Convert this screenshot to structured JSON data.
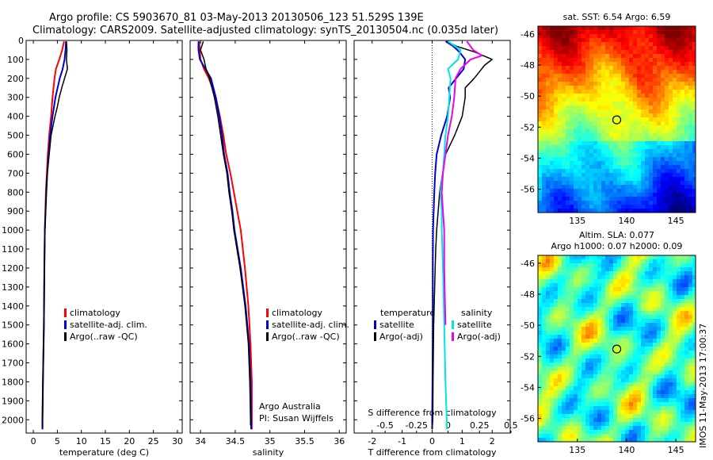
{
  "header": {
    "line1": "Argo profile: CS 5903670_81 03-May-2013 20130506_123 51.529S 139E",
    "line2": "Climatology: CARS2009. Satellite-adjusted climatology: synTS_20130504.nc (0.035d later)"
  },
  "side_label": "IMOS 11-May-2013 17:00:37",
  "colors": {
    "climatology": "#ff0000",
    "satellite": "#0000cc",
    "argo": "#000000",
    "satellite_salinity": "#00e5e5",
    "argo_salinity": "#ee00ee"
  },
  "chart_data": [
    {
      "id": "temperature",
      "type": "line",
      "xlabel": "temperature (deg C)",
      "ylabel": "",
      "xlim": [
        -1.5,
        31
      ],
      "ylim": [
        2070,
        0
      ],
      "xticks": [
        0,
        5,
        10,
        15,
        20,
        25,
        30
      ],
      "xtick_labels": [
        "0",
        "5",
        "10",
        "15",
        "20",
        "25",
        "30"
      ],
      "yticks": [
        0,
        100,
        200,
        300,
        400,
        500,
        600,
        700,
        800,
        900,
        1000,
        1100,
        1200,
        1300,
        1400,
        1500,
        1600,
        1700,
        1800,
        1900,
        2000
      ],
      "ytick_labels": [
        "0",
        "100",
        "200",
        "300",
        "400",
        "500",
        "600",
        "700",
        "800",
        "900",
        "1000",
        "1100",
        "1200",
        "1300",
        "1400",
        "1500",
        "1600",
        "1700",
        "1800",
        "1900",
        "2000"
      ],
      "legend": [
        "climatology",
        "satellite-adj. clim.",
        "Argo(..raw -QC)"
      ],
      "series": [
        {
          "name": "climatology",
          "color": "#ff0000",
          "width": 2,
          "depth": [
            5,
            50,
            100,
            150,
            200,
            300,
            400,
            500,
            600,
            700,
            800,
            1000,
            1200,
            1500,
            1800,
            2000,
            2050
          ],
          "x": [
            6.4,
            6.0,
            5.4,
            4.7,
            4.4,
            4.0,
            3.7,
            3.3,
            3.0,
            2.8,
            2.6,
            2.4,
            2.3,
            2.2,
            2.0,
            1.9,
            1.9
          ]
        },
        {
          "name": "satellite-adj. clim.",
          "color": "#0000cc",
          "width": 2,
          "depth": [
            5,
            50,
            100,
            150,
            200,
            300,
            400,
            500,
            600,
            700,
            800,
            1000,
            1200,
            1500,
            1800,
            2000,
            2050
          ],
          "x": [
            6.8,
            6.7,
            6.5,
            6.1,
            5.5,
            4.6,
            4.0,
            3.5,
            3.2,
            2.9,
            2.7,
            2.4,
            2.3,
            2.2,
            2.0,
            1.9,
            1.9
          ]
        },
        {
          "name": "Argo(..raw -QC)",
          "color": "#000000",
          "width": 1.5,
          "depth": [
            5,
            50,
            100,
            150,
            200,
            250,
            300,
            350,
            400,
            500,
            600,
            700,
            800,
            1000,
            1200,
            1500,
            1800,
            2000,
            2040
          ],
          "x": [
            6.9,
            7.0,
            6.9,
            7.1,
            6.5,
            5.9,
            5.4,
            5.0,
            4.5,
            3.7,
            3.3,
            2.9,
            2.7,
            2.4,
            2.3,
            2.2,
            2.0,
            1.9,
            1.9
          ]
        }
      ]
    },
    {
      "id": "salinity",
      "type": "line",
      "xlabel": "salinity",
      "ylabel": "",
      "xlim": [
        33.85,
        36.1
      ],
      "ylim": [
        2070,
        0
      ],
      "xticks": [
        34,
        34.5,
        35,
        35.5,
        36
      ],
      "xtick_labels": [
        "34",
        "34.5",
        "35",
        "35.5",
        "36"
      ],
      "legend": [
        "climatology",
        "satellite-adj. clim.",
        "Argo(..raw -QC)"
      ],
      "annotations": [
        "Argo Australia",
        "PI: Susan Wijffels"
      ],
      "series": [
        {
          "name": "climatology",
          "color": "#ff0000",
          "width": 2,
          "depth": [
            5,
            50,
            100,
            150,
            200,
            300,
            400,
            500,
            600,
            700,
            800,
            900,
            1000,
            1200,
            1400,
            1600,
            1800,
            2000,
            2050
          ],
          "x": [
            33.98,
            33.99,
            34.0,
            34.05,
            34.12,
            34.22,
            34.28,
            34.33,
            34.37,
            34.43,
            34.48,
            34.53,
            34.58,
            34.64,
            34.69,
            34.72,
            34.74,
            34.74,
            34.74
          ]
        },
        {
          "name": "satellite-adj. clim.",
          "color": "#0000cc",
          "width": 2,
          "depth": [
            5,
            50,
            100,
            150,
            200,
            300,
            400,
            500,
            600,
            700,
            800,
            900,
            1000,
            1200,
            1400,
            1600,
            1800,
            2000,
            2050
          ],
          "x": [
            33.97,
            33.97,
            33.99,
            34.07,
            34.15,
            34.22,
            34.27,
            34.31,
            34.34,
            34.39,
            34.42,
            34.46,
            34.49,
            34.58,
            34.65,
            34.7,
            34.72,
            34.73,
            34.73
          ]
        },
        {
          "name": "Argo(..raw -QC)",
          "color": "#000000",
          "width": 1.5,
          "depth": [
            5,
            50,
            100,
            150,
            200,
            300,
            400,
            500,
            600,
            700,
            800,
            900,
            1000,
            1200,
            1400,
            1600,
            1800,
            2000,
            2030
          ],
          "x": [
            34.04,
            34.0,
            34.05,
            34.08,
            34.13,
            34.2,
            34.25,
            34.29,
            34.33,
            34.38,
            34.41,
            34.45,
            34.48,
            34.57,
            34.64,
            34.69,
            34.71,
            34.72,
            34.72
          ]
        }
      ]
    },
    {
      "id": "difference",
      "type": "line",
      "xlabel": "T difference from climatology",
      "x2label": "S difference from climatology",
      "ylabel": "",
      "xlim": [
        -2.6,
        2.6
      ],
      "ylim": [
        2070,
        0
      ],
      "xticks": [
        -2,
        -1,
        0,
        1,
        2
      ],
      "xtick_labels": [
        "-2",
        "-1",
        "0",
        "1",
        "2"
      ],
      "x2ticks": [
        -0.5,
        -0.25,
        0,
        0.25,
        0.5
      ],
      "x2tick_labels": [
        "-0.5",
        "-0.25",
        "0",
        "0.25",
        "0.5"
      ],
      "legend_titles": [
        "temperature",
        "salinity"
      ],
      "legend": [
        "satellite",
        "Argo(-adj)",
        "satellite",
        "Argo(-adj)"
      ],
      "series": [
        {
          "name": "satellite",
          "color": "#0000cc",
          "width": 2,
          "axis": "T",
          "depth": [
            5,
            30,
            60,
            100,
            150,
            200,
            250,
            300,
            400,
            500,
            600,
            700,
            800,
            900,
            1000,
            1200,
            1500,
            1800,
            2000,
            2050
          ],
          "x": [
            0.45,
            0.7,
            0.9,
            1.1,
            1.05,
            0.8,
            0.55,
            0.6,
            0.5,
            0.3,
            0.15,
            0.1,
            0.07,
            0.05,
            0.03,
            0.02,
            0.02,
            0.01,
            0.0,
            0.0
          ]
        },
        {
          "name": "Argo(-adj)",
          "color": "#000000",
          "width": 1.5,
          "axis": "T",
          "depth": [
            5,
            30,
            60,
            100,
            130,
            160,
            200,
            250,
            300,
            400,
            500,
            600,
            700,
            800,
            900,
            1000,
            1100,
            1200,
            1500,
            1800,
            2000,
            2050
          ],
          "x": [
            0.5,
            0.8,
            1.4,
            2.0,
            1.75,
            1.6,
            1.4,
            1.1,
            1.1,
            1.0,
            0.75,
            0.45,
            0.35,
            0.25,
            0.2,
            0.15,
            0.12,
            0.1,
            0.05,
            0.03,
            0.02,
            0.0
          ]
        },
        {
          "name": "satellite",
          "color": "#00e5e5",
          "width": 2,
          "axis": "S",
          "depth": [
            5,
            50,
            100,
            150,
            200,
            300,
            400,
            500,
            600,
            700,
            800,
            900,
            1000,
            1200,
            1500,
            1800,
            2000,
            2050
          ],
          "x": [
            0.0,
            0.1,
            0.08,
            0.0,
            0.02,
            0.01,
            0.0,
            -0.02,
            -0.03,
            -0.04,
            -0.06,
            -0.05,
            -0.05,
            -0.04,
            -0.03,
            -0.02,
            -0.01,
            -0.01
          ]
        },
        {
          "name": "Argo(-adj)",
          "color": "#ee00ee",
          "width": 2,
          "axis": "S",
          "depth": [
            5,
            50,
            80,
            100,
            150,
            200,
            300,
            400,
            500,
            600,
            700,
            800,
            900,
            1000,
            1200,
            1500
          ],
          "x": [
            0.15,
            0.2,
            0.27,
            0.18,
            0.1,
            0.06,
            0.05,
            0.03,
            0.0,
            -0.02,
            -0.04,
            -0.05,
            -0.04,
            -0.03,
            -0.03,
            -0.02
          ]
        }
      ]
    },
    {
      "id": "sst_map",
      "type": "heatmap",
      "title": "sat. SST: 6.54  Argo: 6.59",
      "xlim": [
        131,
        147
      ],
      "ylim": [
        -57.5,
        -45.5
      ],
      "xticks": [
        135,
        140,
        145
      ],
      "xtick_labels": [
        "135",
        "140",
        "145"
      ],
      "yticks": [
        -46,
        -48,
        -50,
        -52,
        -54,
        -56
      ],
      "ytick_labels": [
        "-46",
        "-48",
        "-50",
        "-52",
        "-54",
        "-56"
      ],
      "marker": {
        "lon": 139,
        "lat": -51.53
      }
    },
    {
      "id": "sla_map",
      "type": "heatmap",
      "title": "Altim. SLA: 0.077",
      "subtitle": "Argo h1000: 0.07 h2000: 0.09",
      "xlim": [
        131,
        147
      ],
      "ylim": [
        -57.5,
        -45.5
      ],
      "xticks": [
        135,
        140,
        145
      ],
      "xtick_labels": [
        "135",
        "140",
        "145"
      ],
      "yticks": [
        -46,
        -48,
        -50,
        -52,
        -54,
        -56
      ],
      "ytick_labels": [
        "-46",
        "-48",
        "-50",
        "-52",
        "-54",
        "-56"
      ],
      "marker": {
        "lon": 139,
        "lat": -51.53
      }
    }
  ]
}
